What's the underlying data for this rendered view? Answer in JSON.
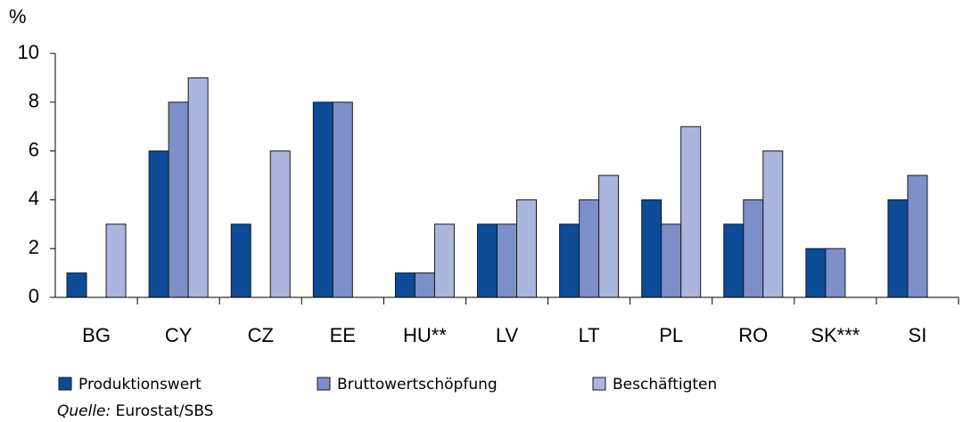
{
  "chart_data": {
    "type": "bar",
    "y_axis_label": "%",
    "categories": [
      "BG",
      "CY",
      "CZ",
      "EE",
      "HU**",
      "LV",
      "LT",
      "PL",
      "RO",
      "SK***",
      "SI"
    ],
    "series": [
      {
        "name": "Produktionswert",
        "color": "#0d4b96",
        "values": [
          1,
          6,
          3,
          8,
          1,
          3,
          3,
          4,
          3,
          2,
          4
        ]
      },
      {
        "name": "Bruttowertschöpfung",
        "color": "#7d8fc9",
        "values": [
          null,
          8,
          null,
          8,
          1,
          3,
          4,
          3,
          4,
          2,
          5
        ]
      },
      {
        "name": "Beschäftigten",
        "color": "#abb5de",
        "values": [
          3,
          9,
          6,
          null,
          3,
          4,
          5,
          7,
          6,
          null,
          null
        ]
      }
    ],
    "ylim": [
      0,
      10
    ],
    "yticks": [
      0,
      2,
      4,
      6,
      8,
      10
    ],
    "legend": "bottom",
    "source": {
      "label": "Quelle:",
      "text": "Eurostat/SBS"
    }
  }
}
